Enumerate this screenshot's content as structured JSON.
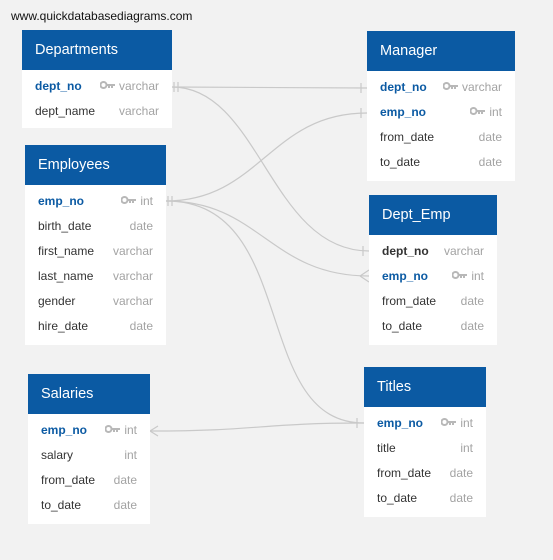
{
  "site": {
    "url": "www.quickdatabasediagrams.com"
  },
  "colors": {
    "header": "#0b5aa3",
    "key_text": "#0b5aa3",
    "type_text": "#a3a3a3",
    "line": "#c9c9c9"
  },
  "tables": {
    "departments": {
      "title": "Departments",
      "fields": [
        {
          "name": "dept_no",
          "type": "varchar",
          "key": true
        },
        {
          "name": "dept_name",
          "type": "varchar",
          "key": false
        }
      ]
    },
    "manager": {
      "title": "Manager",
      "fields": [
        {
          "name": "dept_no",
          "type": "varchar",
          "key": true
        },
        {
          "name": "emp_no",
          "type": "int",
          "key": true
        },
        {
          "name": "from_date",
          "type": "date",
          "key": false
        },
        {
          "name": "to_date",
          "type": "date",
          "key": false
        }
      ]
    },
    "employees": {
      "title": "Employees",
      "fields": [
        {
          "name": "emp_no",
          "type": "int",
          "key": true
        },
        {
          "name": "birth_date",
          "type": "date",
          "key": false
        },
        {
          "name": "first_name",
          "type": "varchar",
          "key": false
        },
        {
          "name": "last_name",
          "type": "varchar",
          "key": false
        },
        {
          "name": "gender",
          "type": "varchar",
          "key": false
        },
        {
          "name": "hire_date",
          "type": "date",
          "key": false
        }
      ]
    },
    "dept_emp": {
      "title": "Dept_Emp",
      "fields": [
        {
          "name": "dept_no",
          "type": "varchar",
          "key": true
        },
        {
          "name": "emp_no",
          "type": "int",
          "key": true
        },
        {
          "name": "from_date",
          "type": "date",
          "key": false
        },
        {
          "name": "to_date",
          "type": "date",
          "key": false
        }
      ]
    },
    "salaries": {
      "title": "Salaries",
      "fields": [
        {
          "name": "emp_no",
          "type": "int",
          "key": true
        },
        {
          "name": "salary",
          "type": "int",
          "key": false
        },
        {
          "name": "from_date",
          "type": "date",
          "key": false
        },
        {
          "name": "to_date",
          "type": "date",
          "key": false
        }
      ]
    },
    "titles": {
      "title": "Titles",
      "fields": [
        {
          "name": "emp_no",
          "type": "int",
          "key": true
        },
        {
          "name": "title",
          "type": "int",
          "key": false
        },
        {
          "name": "from_date",
          "type": "date",
          "key": false
        },
        {
          "name": "to_date",
          "type": "date",
          "key": false
        }
      ]
    }
  }
}
